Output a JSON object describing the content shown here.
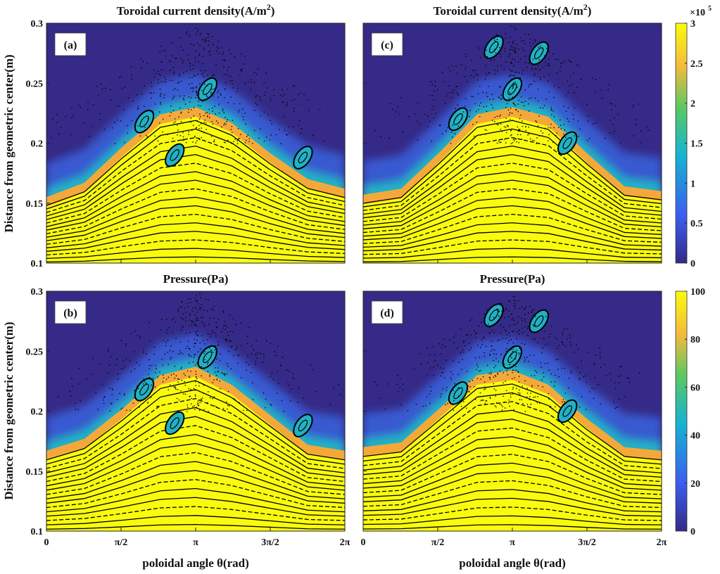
{
  "chart_data": {
    "type": "heatmap",
    "xlabel": "poloidal angle θ(rad)",
    "ylabel": "Distance from geometric center(m)",
    "xlim": [
      0,
      6.2832
    ],
    "ylim": [
      0.1,
      0.3
    ],
    "xticks": [
      "0",
      "π/2",
      "π",
      "3π/2",
      "2π"
    ],
    "yticks": [
      "0.1",
      "0.15",
      "0.2",
      "0.25",
      "0.3"
    ],
    "colorbars": [
      {
        "title_prefix": "×10",
        "title_exp": "5",
        "range": [
          0,
          3
        ],
        "ticks": [
          "0",
          "0.5",
          "1",
          "1.5",
          "2",
          "2.5",
          "3"
        ]
      },
      {
        "range": [
          0,
          100
        ],
        "ticks": [
          "0",
          "20",
          "40",
          "60",
          "80",
          "100"
        ]
      }
    ],
    "colors": {
      "low": "#352a87",
      "mid": "#21b1c4",
      "high": "#f9fb0e",
      "orange": "#f5a83a"
    },
    "panels": [
      {
        "label": "(a)",
        "title": "Toroidal current density(A/m",
        "title_sup": "2",
        "title_end": ")",
        "edge_theta": [
          0,
          0.8,
          1.6,
          2.4,
          3.14,
          3.9,
          4.7,
          5.5,
          6.28
        ],
        "edge_r": [
          0.153,
          0.165,
          0.195,
          0.222,
          0.228,
          0.215,
          0.19,
          0.168,
          0.16
        ],
        "islands": [
          [
            2.06,
            0.218
          ],
          [
            3.39,
            0.245
          ],
          [
            5.4,
            0.188
          ],
          [
            2.7,
            0.19
          ]
        ]
      },
      {
        "label": "(c)",
        "title": "Toroidal current density(A/m",
        "title_sup": "2",
        "title_end": ")",
        "edge_theta": [
          0,
          0.8,
          1.6,
          2.4,
          3.14,
          3.9,
          4.7,
          5.5,
          6.28
        ],
        "edge_r": [
          0.155,
          0.16,
          0.19,
          0.222,
          0.228,
          0.22,
          0.19,
          0.162,
          0.158
        ],
        "islands": [
          [
            2.0,
            0.22
          ],
          [
            3.14,
            0.245
          ],
          [
            4.3,
            0.2
          ],
          [
            2.75,
            0.28
          ],
          [
            3.7,
            0.275
          ]
        ]
      },
      {
        "label": "(b)",
        "title": "Pressure(Pa)",
        "title_sup": "",
        "title_end": "",
        "edge_theta": [
          0,
          0.8,
          1.6,
          2.4,
          3.14,
          3.9,
          4.7,
          5.5,
          6.28
        ],
        "edge_r": [
          0.165,
          0.175,
          0.2,
          0.228,
          0.235,
          0.22,
          0.195,
          0.17,
          0.165
        ],
        "islands": [
          [
            2.06,
            0.218
          ],
          [
            3.39,
            0.245
          ],
          [
            5.4,
            0.188
          ],
          [
            2.7,
            0.19
          ]
        ]
      },
      {
        "label": "(d)",
        "title": "Pressure(Pa)",
        "title_sup": "",
        "title_end": "",
        "edge_theta": [
          0,
          0.8,
          1.6,
          2.4,
          3.14,
          3.9,
          4.7,
          5.5,
          6.28
        ],
        "edge_r": [
          0.168,
          0.172,
          0.2,
          0.228,
          0.232,
          0.22,
          0.192,
          0.168,
          0.165
        ],
        "islands": [
          [
            2.0,
            0.215
          ],
          [
            3.14,
            0.245
          ],
          [
            4.3,
            0.2
          ],
          [
            2.75,
            0.28
          ],
          [
            3.7,
            0.275
          ]
        ]
      }
    ]
  }
}
